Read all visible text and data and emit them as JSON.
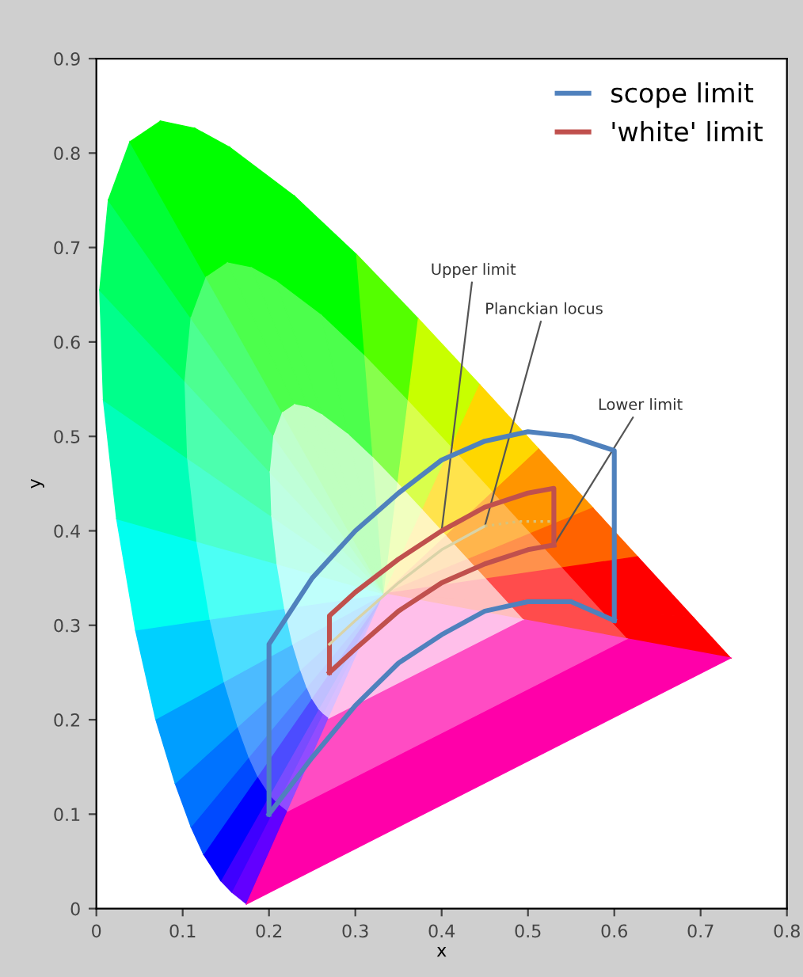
{
  "chart_data": {
    "type": "line",
    "xlabel": "x",
    "ylabel": "y",
    "xlim": [
      0,
      0.8
    ],
    "ylim": [
      0,
      0.9
    ],
    "xticks": [
      0,
      0.1,
      0.2,
      0.3,
      0.4,
      0.5,
      0.6,
      0.7,
      0.8
    ],
    "yticks": [
      0,
      0.1,
      0.2,
      0.3,
      0.4,
      0.5,
      0.6,
      0.7,
      0.8,
      0.9
    ],
    "grid": false,
    "legend": "top right",
    "marker": "none",
    "series": [
      {
        "name": "scope limit",
        "color": "#4f81bd",
        "x": [
          0.2,
          0.2,
          0.25,
          0.3,
          0.35,
          0.4,
          0.45,
          0.5,
          0.55,
          0.6,
          0.6
        ],
        "values": [
          0.1,
          0.28,
          0.35,
          0.4,
          0.44,
          0.475,
          0.495,
          0.505,
          0.5,
          0.485,
          0.305
        ]
      },
      {
        "color": "#4f81bd",
        "x": [
          0.2,
          0.25,
          0.3,
          0.35,
          0.4,
          0.45,
          0.5,
          0.55,
          0.6
        ],
        "values": [
          0.1,
          0.16,
          0.215,
          0.26,
          0.29,
          0.315,
          0.325,
          0.325,
          0.305
        ]
      },
      {
        "name": "'white' limit",
        "color": "#c0504d",
        "x": [
          0.27,
          0.27,
          0.3,
          0.35,
          0.4,
          0.45,
          0.5,
          0.53,
          0.53
        ],
        "values": [
          0.25,
          0.31,
          0.335,
          0.37,
          0.4,
          0.425,
          0.44,
          0.445,
          0.385
        ]
      },
      {
        "color": "#c0504d",
        "x": [
          0.27,
          0.3,
          0.35,
          0.4,
          0.45,
          0.5,
          0.53
        ],
        "values": [
          0.25,
          0.275,
          0.315,
          0.345,
          0.365,
          0.38,
          0.385
        ]
      },
      {
        "color": "#d9d3a8",
        "x": [
          0.27,
          0.3,
          0.35,
          0.4,
          0.45
        ],
        "values": [
          0.28,
          0.305,
          0.345,
          0.38,
          0.405
        ]
      },
      {
        "color": "#d9c27a",
        "line_style": "dotted",
        "x": [
          0.45,
          0.49,
          0.53
        ],
        "values": [
          0.405,
          0.41,
          0.41
        ]
      }
    ],
    "annotations": [
      {
        "text": "Upper limit",
        "x": 0.4,
        "y": 0.4
      },
      {
        "text": "Planckian locus",
        "x": 0.45,
        "y": 0.405
      },
      {
        "text": "Lower limit",
        "x": 0.53,
        "y": 0.385
      }
    ]
  }
}
